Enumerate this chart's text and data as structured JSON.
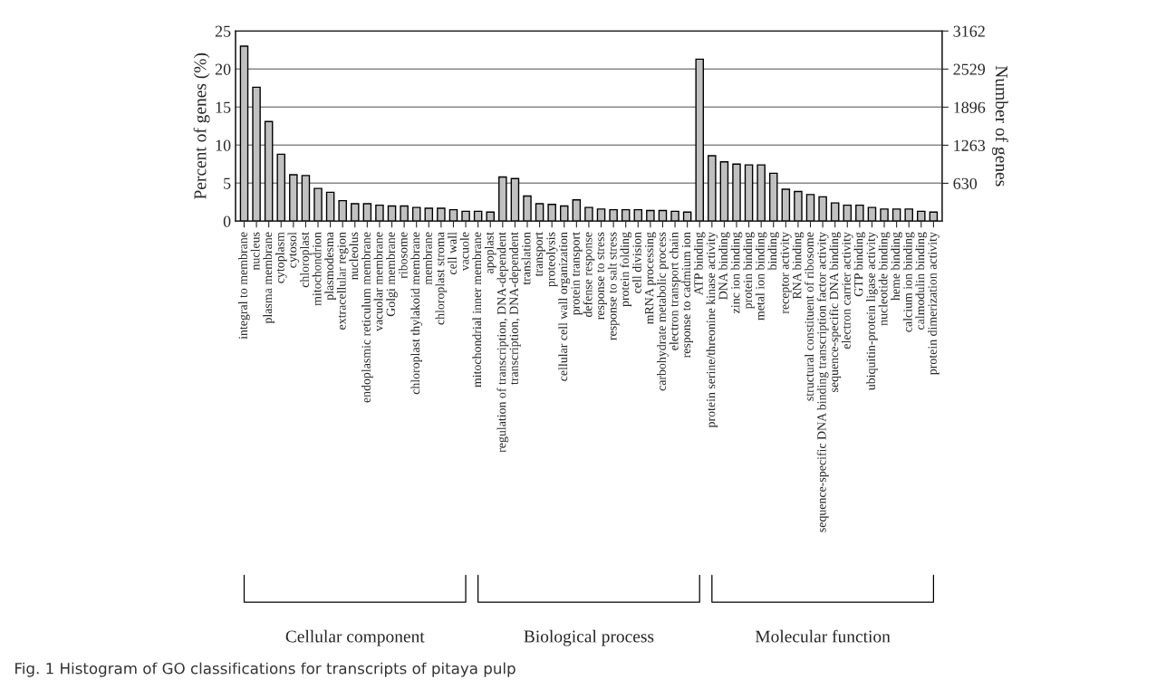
{
  "chart_data": {
    "type": "bar",
    "categories": [
      "integral to membrane",
      "nucleus",
      "plasma membrane",
      "cytoplasm",
      "cytosol",
      "chloroplast",
      "mitochondrion",
      "plasmodesma",
      "extracellular region",
      "nucleolus",
      "endoplasmic reticulum membrane",
      "vacuolar membrane",
      "Golgi membrane",
      "ribosome",
      "chloroplast thylakoid membrane",
      "membrane",
      "chloroplast stroma",
      "cell wall",
      "vacuole",
      "mitochondrial inner membrane",
      "apoplast",
      "regulation of transcription, DNA-dependent",
      "transcription, DNA-dependent",
      "translation",
      "transport",
      "proteolysis",
      "cellular cell wall organization",
      "protein transport",
      "defense response",
      "response to stress",
      "response to salt stress",
      "protein folding",
      "cell division",
      "mRNA processing",
      "carbohydrate metabolic process",
      "electron transport chain",
      "response to cadmium ion",
      "ATP binding",
      "protein serine/threonine kinase activity",
      "DNA binding",
      "zinc ion binding",
      "protein binding",
      "metal ion binding",
      "binding",
      "receptor activity",
      "RNA binding",
      "structural constituent of ribosome",
      "sequence-specific DNA binding transcription factor activity",
      "sequence-specific DNA binding",
      "electron carrier activity",
      "GTP binding",
      "ubiquitin-protein ligase activity",
      "nucleotide binding",
      "heme binding",
      "calcium ion binding",
      "calmodulin binding",
      "protein dimerization activity"
    ],
    "values": [
      23.0,
      17.6,
      13.1,
      8.8,
      6.1,
      6.0,
      4.3,
      3.8,
      2.7,
      2.3,
      2.3,
      2.1,
      2.0,
      2.0,
      1.8,
      1.7,
      1.7,
      1.5,
      1.3,
      1.3,
      1.2,
      5.8,
      5.6,
      3.3,
      2.3,
      2.2,
      2.0,
      2.8,
      1.8,
      1.6,
      1.5,
      1.5,
      1.5,
      1.4,
      1.4,
      1.3,
      1.2,
      21.3,
      8.6,
      7.8,
      7.5,
      7.4,
      7.4,
      6.3,
      4.2,
      3.9,
      3.5,
      3.2,
      2.4,
      2.1,
      2.1,
      1.8,
      1.6,
      1.6,
      1.6,
      1.3,
      1.2
    ],
    "color": "#c0c0c0",
    "ylabel": "Percent of genes (%)",
    "y2label": "Number of genes",
    "ylim": [
      0,
      25
    ],
    "yticks": [
      0,
      5,
      10,
      15,
      20,
      25
    ],
    "y2lim": [
      0,
      3162
    ],
    "y2ticks": [
      630,
      1263,
      1896,
      2529,
      3162
    ],
    "grid": "y",
    "annotations": [
      "Cellular component",
      "Biological process",
      "Molecular function",
      "Fig. 1 Histogram of GO classifications for transcripts of pitaya pulp"
    ]
  }
}
